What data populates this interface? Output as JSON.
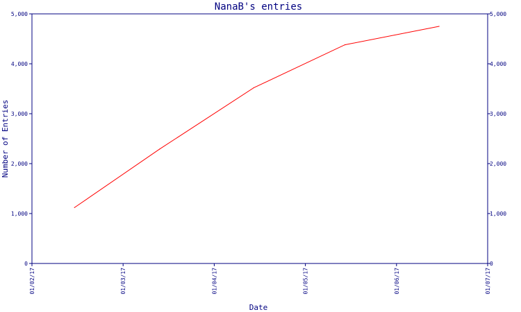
{
  "chart_data": {
    "type": "line",
    "title": "NanaB's entries",
    "xlabel": "Date",
    "ylabel": "Number of Entries",
    "x_ticks": [
      "01/02/17",
      "01/03/17",
      "01/04/17",
      "01/05/17",
      "01/06/17",
      "01/07/17"
    ],
    "y_ticks": [
      "0",
      "1,000",
      "2,000",
      "3,000",
      "4,000",
      "5,000"
    ],
    "ylim": [
      0,
      5000
    ],
    "xlim": [
      "2017-02-01",
      "2017-07-01"
    ],
    "grid": false,
    "series": [
      {
        "color": "#ff0000",
        "points": [
          {
            "x": "2017-02-15",
            "y": 1120
          },
          {
            "x": "2017-03-15",
            "y": 2290
          },
          {
            "x": "2017-04-15",
            "y": 3520
          },
          {
            "x": "2017-05-15",
            "y": 4380
          },
          {
            "x": "2017-06-15",
            "y": 4750
          }
        ]
      }
    ]
  }
}
